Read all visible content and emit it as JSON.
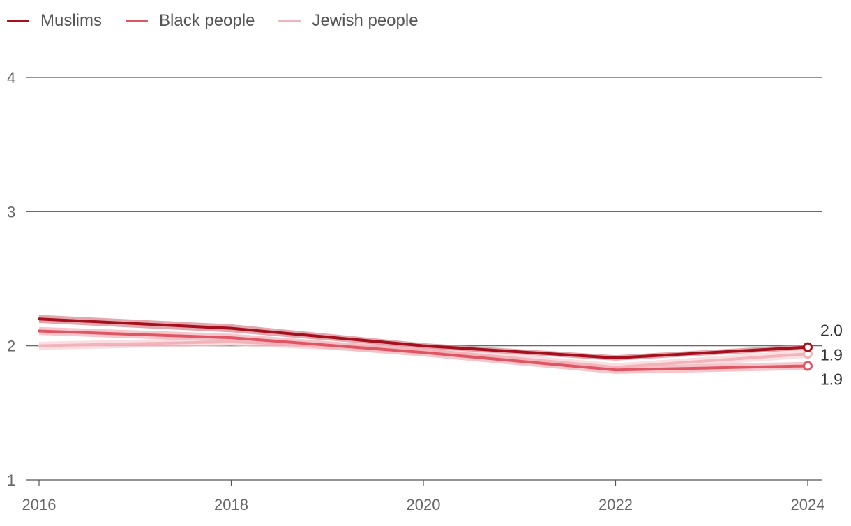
{
  "chart_data": {
    "type": "line",
    "title": "",
    "xlabel": "",
    "ylabel": "",
    "x": [
      2016,
      2018,
      2020,
      2022,
      2024
    ],
    "x_tick_labels": [
      "2016",
      "2018",
      "2020",
      "2022",
      "2024"
    ],
    "ylim": [
      1,
      4
    ],
    "y_ticks": [
      1,
      2,
      3,
      4
    ],
    "y_tick_labels": [
      "1",
      "2",
      "3",
      "4"
    ],
    "grid": true,
    "legend_position": "top-left",
    "series": [
      {
        "name": "Muslims",
        "color": "#a50f1e",
        "band_color": "#d98a93",
        "values": [
          2.2,
          2.13,
          2.0,
          1.91,
          1.99
        ],
        "lower": [
          2.17,
          2.1,
          1.98,
          1.89,
          1.97
        ],
        "upper": [
          2.23,
          2.16,
          2.02,
          1.93,
          2.01
        ],
        "end_label": "2.0"
      },
      {
        "name": "Black people",
        "color": "#e05563",
        "band_color": "#f4b4bc",
        "values": [
          2.11,
          2.06,
          1.95,
          1.82,
          1.85
        ],
        "lower": [
          2.08,
          2.03,
          1.92,
          1.79,
          1.82
        ],
        "upper": [
          2.14,
          2.09,
          1.98,
          1.85,
          1.88
        ],
        "end_label": "1.9"
      },
      {
        "name": "Jewish people",
        "color": "#f2b3bb",
        "band_color": "#f8d3d8",
        "values": [
          2.0,
          2.03,
          1.97,
          1.84,
          1.94
        ],
        "lower": [
          1.97,
          2.0,
          1.94,
          1.81,
          1.91
        ],
        "upper": [
          2.03,
          2.06,
          2.0,
          1.87,
          1.97
        ],
        "end_label": "1.9"
      }
    ]
  }
}
